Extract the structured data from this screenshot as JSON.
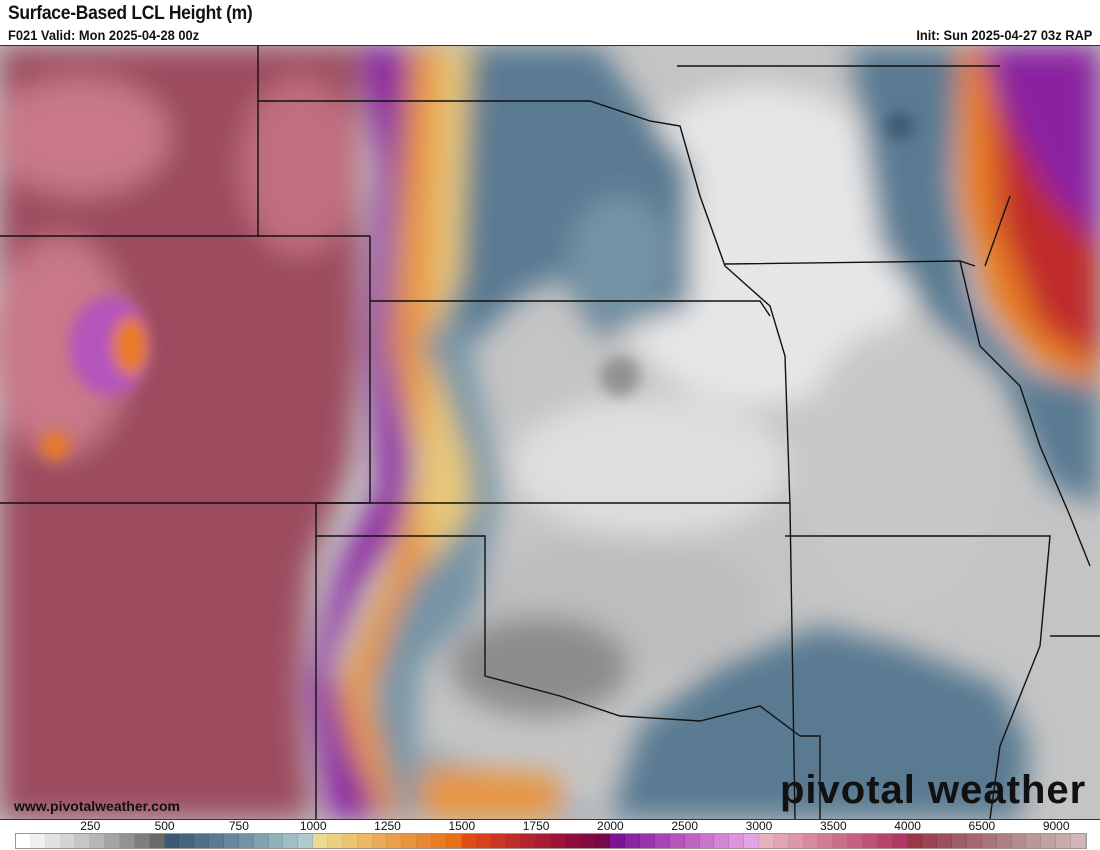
{
  "header": {
    "title": "Surface-Based LCL Height (m)",
    "valid": "F021 Valid: Mon 2025-04-28 00z",
    "init": "Init: Sun 2025-04-27 03z RAP"
  },
  "footer": {
    "url": "www.pivotalweather.com",
    "logo": "pivotal weather"
  },
  "colorbar": {
    "labels": [
      "250",
      "500",
      "750",
      "1000",
      "1250",
      "1500",
      "1750",
      "2000",
      "2500",
      "3000",
      "3500",
      "4000",
      "6500",
      "9000"
    ],
    "colors": [
      "#ffffff",
      "#f0f0f0",
      "#e2e2e2",
      "#d4d4d4",
      "#c6c6c6",
      "#b6b6b6",
      "#a4a4a4",
      "#929292",
      "#7e7e7e",
      "#6a6a6a",
      "#3c5a74",
      "#46647e",
      "#507088",
      "#5a7a92",
      "#66869c",
      "#7494a6",
      "#82a2b0",
      "#90b0ba",
      "#a0bec4",
      "#aecacc",
      "#e8dc94",
      "#ecd080",
      "#eec470",
      "#eeb862",
      "#ecac56",
      "#eaa04a",
      "#e89440",
      "#e88834",
      "#e87c24",
      "#e67018",
      "#e04a14",
      "#d8401e",
      "#cc3626",
      "#c02c2c",
      "#b42430",
      "#a81c34",
      "#9c1438",
      "#900e3c",
      "#840a42",
      "#780848",
      "#7a1494",
      "#8a24a0",
      "#9a34aa",
      "#a844b4",
      "#b454bc",
      "#c064c4",
      "#ca74cc",
      "#d484d4",
      "#dc94dc",
      "#e2a4e2",
      "#e4b2bc",
      "#e0a4b2",
      "#dc98a8",
      "#d88a9e",
      "#d27c94",
      "#cc6e8a",
      "#c66080",
      "#c05276",
      "#b8446c",
      "#b03862",
      "#983848",
      "#9a4454",
      "#9c505c",
      "#a05c66",
      "#a4686e",
      "#a87478",
      "#ae8084",
      "#b48c8e",
      "#ba9898",
      "#c0a2a2",
      "#c8acac",
      "#d0b6b6"
    ]
  },
  "map": {
    "colors": {
      "west_maroon": "#9c4c5e",
      "west_pink": "#c87888",
      "purple": "#8a24a0",
      "orange": "#e88834",
      "yellow": "#e8c878",
      "blue": "#5a7a92",
      "light_blue": "#90b0ba",
      "gray": "#a4a4a4",
      "light_gray": "#d8d8d8",
      "red": "#c02c2c"
    }
  }
}
